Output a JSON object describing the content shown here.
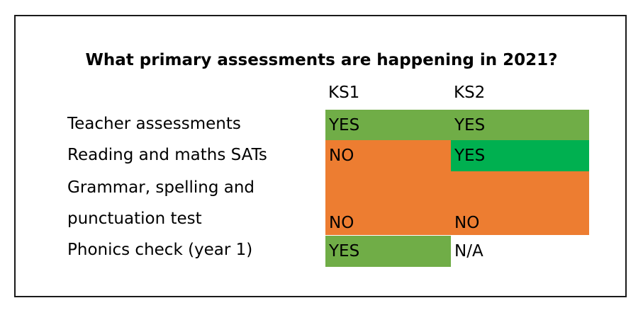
{
  "title": "What primary assessments are happening in 2021?",
  "columns": [
    "KS1",
    "KS2"
  ],
  "colors": {
    "light_green": "#70ad47",
    "bright_green": "#00b050",
    "orange": "#ed7d31",
    "border": "#1a1a1a"
  },
  "rows": [
    {
      "label_lines": [
        "Teacher assessments"
      ],
      "ks1": "YES",
      "ks2": "YES"
    },
    {
      "label_lines": [
        "Reading and maths SATs"
      ],
      "ks1": "NO",
      "ks2": "YES"
    },
    {
      "label_lines": [
        "Grammar, spelling and",
        "punctuation test"
      ],
      "ks1": "NO",
      "ks2": "NO"
    },
    {
      "label_lines": [
        "Phonics check (year 1)"
      ],
      "ks1": "YES",
      "ks2": "N/A"
    }
  ]
}
